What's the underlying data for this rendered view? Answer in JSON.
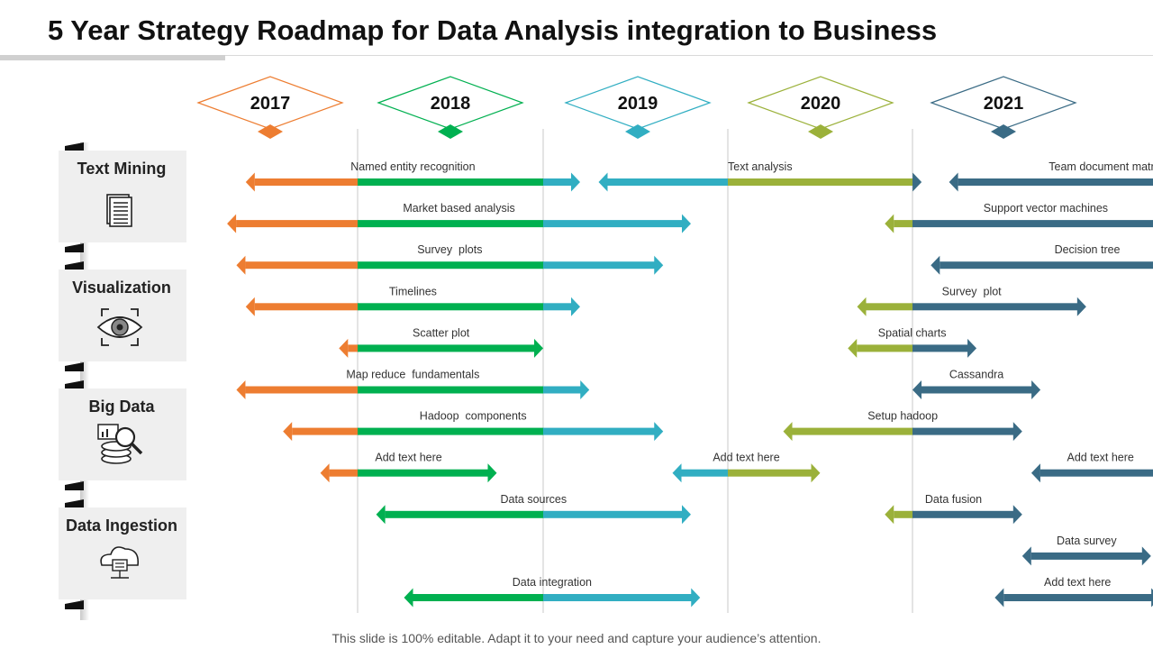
{
  "title": "5 Year Strategy Roadmap for Data Analysis integration to Business",
  "footer": "This slide is 100% editable. Adapt it to your need and capture your audience’s attention.",
  "colors": {
    "2017": "#ED7D31",
    "2018": "#00B050",
    "2019": "#31AEC2",
    "2020": "#9BB13A",
    "2021": "#3A6B85"
  },
  "years": [
    "2017",
    "2018",
    "2019",
    "2020",
    "2021"
  ],
  "categories": [
    {
      "label": "Text Mining",
      "icon": "document-icon"
    },
    {
      "label": "Visualization",
      "icon": "eye-target-icon"
    },
    {
      "label": "Big Data",
      "icon": "database-search-icon"
    },
    {
      "label": "Data Ingestion",
      "icon": "cloud-server-icon"
    }
  ],
  "chart_data": {
    "type": "timeline-gantt",
    "time_unit": "year",
    "axis_range": [
      2016.3,
      2021.9
    ],
    "rows": [
      {
        "tasks": [
          {
            "label": "Named entity recognition",
            "start": 2016.4,
            "end": 2018.2
          },
          {
            "label": "Text analysis",
            "start": 2018.3,
            "end": 2020.05
          },
          {
            "label": "Team document matrix",
            "start": 2020.2,
            "end": 2021.9
          }
        ]
      },
      {
        "tasks": [
          {
            "label": "Market based analysis",
            "start": 2016.3,
            "end": 2018.8
          },
          {
            "label": "Support vector machines",
            "start": 2019.85,
            "end": 2021.6
          }
        ]
      },
      {
        "tasks": [
          {
            "label": "Survey  plots",
            "start": 2016.35,
            "end": 2018.65
          },
          {
            "label": "Decision tree",
            "start": 2020.1,
            "end": 2021.8
          }
        ]
      },
      {
        "tasks": [
          {
            "label": "Timelines",
            "start": 2016.4,
            "end": 2018.2
          },
          {
            "label": "Survey  plot",
            "start": 2019.7,
            "end": 2020.95
          }
        ]
      },
      {
        "tasks": [
          {
            "label": "Scatter plot",
            "start": 2016.9,
            "end": 2018.0
          },
          {
            "label": "Spatial charts",
            "start": 2019.65,
            "end": 2020.35
          }
        ]
      },
      {
        "tasks": [
          {
            "label": "Map reduce  fundamentals",
            "start": 2016.35,
            "end": 2018.25
          },
          {
            "label": "Cassandra",
            "start": 2020.0,
            "end": 2020.7
          }
        ]
      },
      {
        "tasks": [
          {
            "label": "Hadoop  components",
            "start": 2016.6,
            "end": 2018.65
          },
          {
            "label": "Setup hadoop",
            "start": 2019.3,
            "end": 2020.6
          }
        ]
      },
      {
        "tasks": [
          {
            "label": "Add text here",
            "start": 2016.8,
            "end": 2017.75
          },
          {
            "label": "Add text here",
            "start": 2018.7,
            "end": 2019.5
          },
          {
            "label": "Add text here",
            "start": 2020.65,
            "end": 2021.4
          }
        ]
      },
      {
        "tasks": [
          {
            "label": "Data sources",
            "start": 2017.1,
            "end": 2018.8
          },
          {
            "label": "Data fusion",
            "start": 2019.85,
            "end": 2020.6
          }
        ]
      },
      {
        "tasks": [
          {
            "label": "Data survey",
            "start": 2020.6,
            "end": 2021.3
          }
        ]
      },
      {
        "tasks": [
          {
            "label": "Data integration",
            "start": 2017.25,
            "end": 2018.85
          },
          {
            "label": "Add text here",
            "start": 2020.45,
            "end": 2021.35
          }
        ]
      }
    ]
  }
}
